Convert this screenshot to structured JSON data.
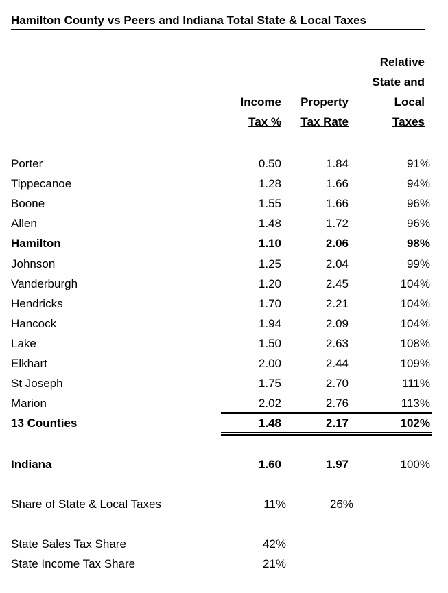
{
  "title": "Hamilton County vs Peers and Indiana Total State & Local Taxes",
  "headers": {
    "income": [
      "Income",
      "Tax %"
    ],
    "property": [
      "Property",
      "Tax Rate"
    ],
    "relative": [
      "Relative",
      "State and",
      "Local",
      "Taxes"
    ]
  },
  "rows": [
    {
      "county": "Porter",
      "income": "0.50",
      "property": "1.84",
      "relative": "91%",
      "bold": false
    },
    {
      "county": "Tippecanoe",
      "income": "1.28",
      "property": "1.66",
      "relative": "94%",
      "bold": false
    },
    {
      "county": "Boone",
      "income": "1.55",
      "property": "1.66",
      "relative": "96%",
      "bold": false
    },
    {
      "county": "Allen",
      "income": "1.48",
      "property": "1.72",
      "relative": "96%",
      "bold": false
    },
    {
      "county": "Hamilton",
      "income": "1.10",
      "property": "2.06",
      "relative": "98%",
      "bold": true
    },
    {
      "county": "Johnson",
      "income": "1.25",
      "property": "2.04",
      "relative": "99%",
      "bold": false
    },
    {
      "county": "Vanderburgh",
      "income": "1.20",
      "property": "2.45",
      "relative": "104%",
      "bold": false
    },
    {
      "county": "Hendricks",
      "income": "1.70",
      "property": "2.21",
      "relative": "104%",
      "bold": false
    },
    {
      "county": "Hancock",
      "income": "1.94",
      "property": "2.09",
      "relative": "104%",
      "bold": false
    },
    {
      "county": "Lake",
      "income": "1.50",
      "property": "2.63",
      "relative": "108%",
      "bold": false
    },
    {
      "county": "Elkhart",
      "income": "2.00",
      "property": "2.44",
      "relative": "109%",
      "bold": false
    },
    {
      "county": "St Joseph",
      "income": "1.75",
      "property": "2.70",
      "relative": "111%",
      "bold": false
    },
    {
      "county": "Marion",
      "income": "2.02",
      "property": "2.76",
      "relative": "113%",
      "bold": false
    },
    {
      "county": "13 Counties",
      "income": "1.48",
      "property": "2.17",
      "relative": "102%",
      "bold": true
    }
  ],
  "indiana": {
    "label": "Indiana",
    "income": "1.60",
    "property": "1.97",
    "relative": "100%"
  },
  "share": {
    "label": "Share of State & Local Taxes",
    "income": "11%",
    "property": "26%"
  },
  "sales_share": {
    "label": "State Sales Tax Share",
    "value": "42%"
  },
  "income_share": {
    "label": "State Income Tax Share",
    "value": "21%"
  }
}
